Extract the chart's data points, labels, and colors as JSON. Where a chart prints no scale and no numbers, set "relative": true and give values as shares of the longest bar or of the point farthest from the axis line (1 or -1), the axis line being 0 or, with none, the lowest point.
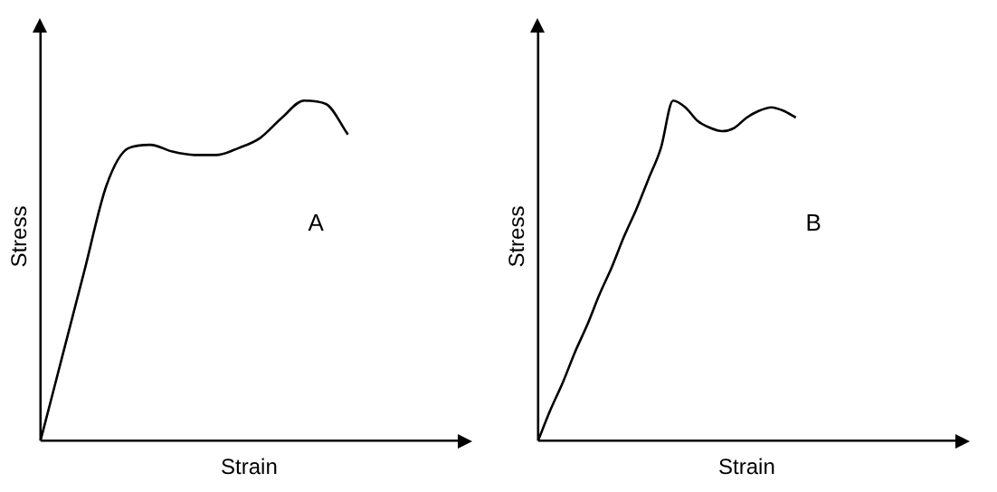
{
  "chart_data": [
    {
      "type": "line",
      "relative": true,
      "xlabel": "Strain",
      "ylabel": "Stress",
      "annotations": [
        "A"
      ],
      "grid": false,
      "legend": false,
      "marker": "none",
      "tick_labels": false,
      "color": "#000000",
      "categories": [
        null,
        null,
        null,
        null,
        null,
        null,
        null,
        null,
        null,
        null,
        null,
        null,
        null,
        null,
        null,
        null,
        null,
        null,
        null,
        null
      ],
      "values": [
        0,
        0.25,
        0.5,
        0.75,
        0.86,
        0.87,
        0.85,
        0.84,
        0.84,
        0.86,
        0.89,
        0.95,
        1,
        0.99,
        0.9,
        null,
        null,
        null,
        null,
        null
      ]
    },
    {
      "type": "line",
      "relative": true,
      "xlabel": "Strain",
      "ylabel": "Stress",
      "annotations": [
        "B"
      ],
      "grid": false,
      "legend": false,
      "marker": "none",
      "tick_labels": false,
      "color": "#000000",
      "categories": [
        null,
        null,
        null,
        null,
        null,
        null,
        null,
        null,
        null,
        null,
        null,
        null,
        null,
        null,
        null,
        null,
        null,
        null,
        null,
        null,
        null,
        null,
        null,
        null,
        null,
        null,
        null,
        null,
        null,
        null,
        null,
        null,
        null,
        null,
        null
      ],
      "values": [
        0,
        0.09,
        0.17,
        0.26,
        0.34,
        0.43,
        0.51,
        0.6,
        0.68,
        0.77,
        0.86,
        1,
        0.98,
        0.94,
        0.92,
        0.91,
        0.92,
        0.95,
        0.97,
        0.98,
        0.97,
        0.95,
        null,
        null,
        null,
        null,
        null,
        null,
        null,
        null,
        null,
        null,
        null,
        null,
        null
      ]
    }
  ]
}
